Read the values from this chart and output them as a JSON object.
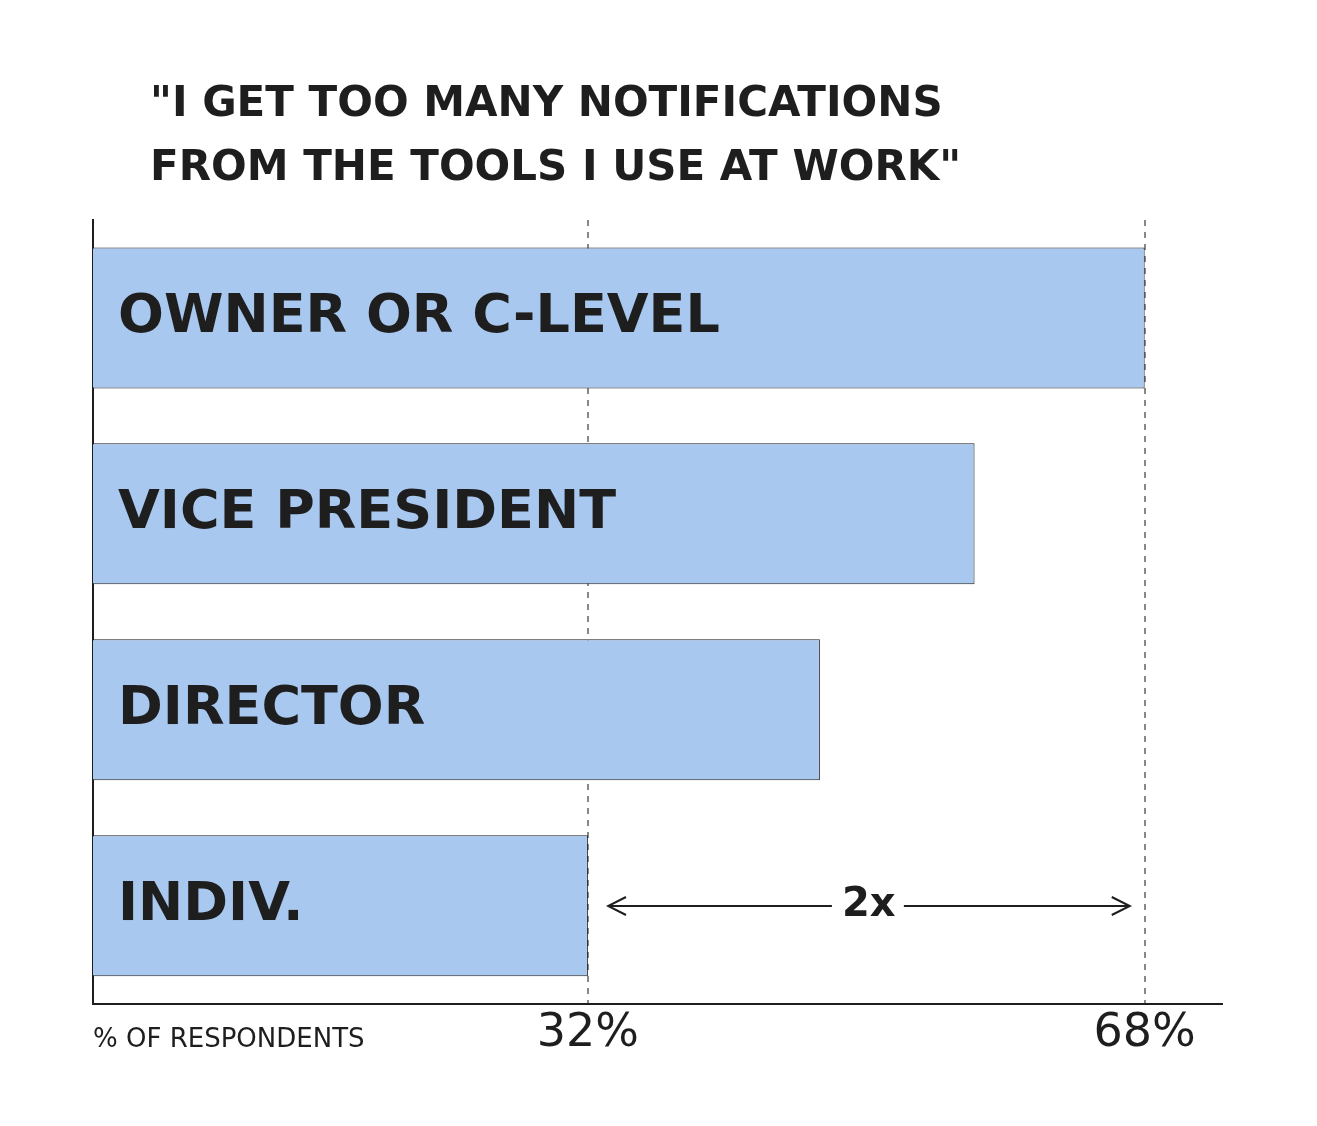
{
  "chart_data": {
    "type": "bar",
    "orientation": "horizontal",
    "title": "\"I GET TOO MANY NOTIFICATIONS FROM THE TOOLS I USE AT WORK\"",
    "xlabel": "% OF RESPONDENTS",
    "categories": [
      "OWNER OR C-LEVEL",
      "VICE PRESIDENT",
      "DIRECTOR",
      "INDIV."
    ],
    "values": [
      68,
      57,
      47,
      32
    ],
    "color": "#a9c8ef",
    "xlim": [
      0,
      73
    ],
    "xticks": [
      {
        "value": 32,
        "label": "32%"
      },
      {
        "value": 68,
        "label": "68%"
      }
    ],
    "grid": "x",
    "tick_labels": "x",
    "legend": false,
    "annotations": [
      "2x"
    ]
  }
}
